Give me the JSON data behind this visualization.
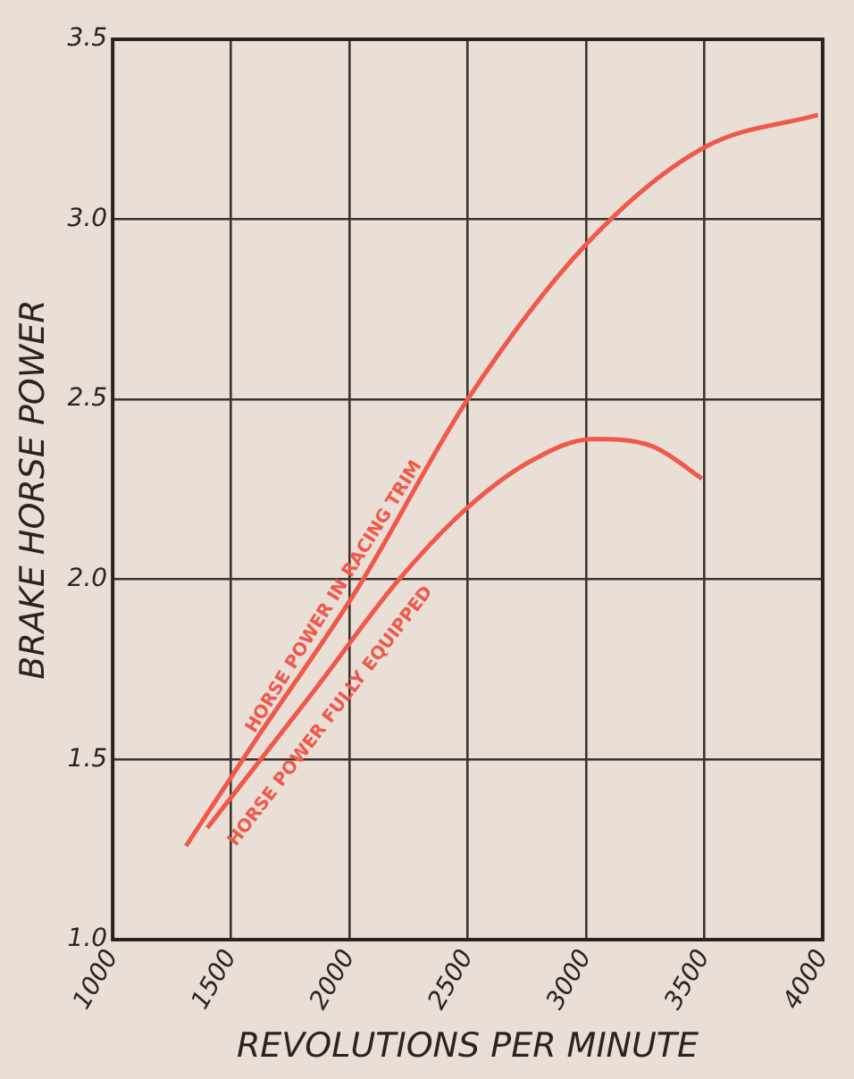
{
  "chart_data": {
    "type": "line",
    "xlabel": "REVOLUTIONS PER MINUTE",
    "ylabel": "BRAKE HORSE POWER",
    "xlim": [
      1000,
      4000
    ],
    "xticks": [
      1000,
      1500,
      2000,
      2500,
      3000,
      3500,
      4000
    ],
    "ylim": [
      1.0,
      3.5
    ],
    "yticks": [
      {
        "value": 1.0,
        "label": "1.0"
      },
      1.5,
      {
        "value": 2.0,
        "label": "2.0"
      },
      2.5,
      {
        "value": 3.0,
        "label": "3.0"
      },
      3.5
    ],
    "grid": true,
    "legend": false,
    "marker": "none",
    "line_style": "solid",
    "series": [
      {
        "name": "HORSE POWER IN RACING TRIM",
        "color": "#f0584a",
        "x": [
          1310,
          1600,
          2030,
          2500,
          3000,
          3500,
          3980
        ],
        "values": [
          1.26,
          1.55,
          1.97,
          2.5,
          2.93,
          3.2,
          3.29
        ]
      },
      {
        "name": "HORSE POWER FULLY EQUIPPED",
        "color": "#f0584a",
        "x": [
          1400,
          1850,
          2210,
          2500,
          2770,
          3030,
          3280,
          3490
        ],
        "values": [
          1.31,
          1.69,
          2.0,
          2.2,
          2.33,
          2.39,
          2.37,
          2.28
        ]
      }
    ]
  }
}
